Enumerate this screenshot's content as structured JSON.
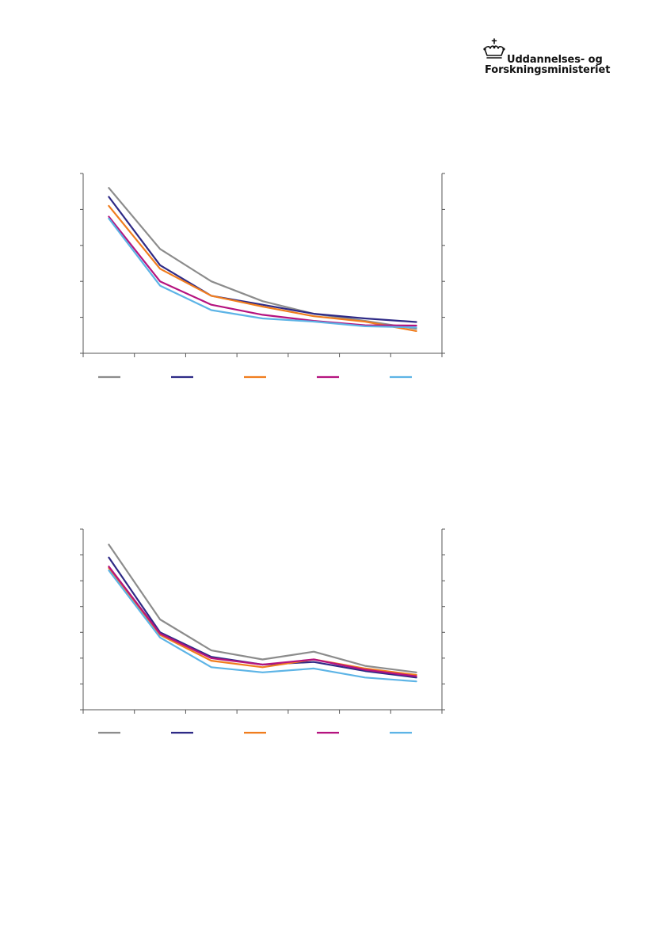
{
  "logo": {
    "line1": "Uddannelses- og",
    "line2": "Forskningsministeriet"
  },
  "colors": {
    "gray": "#8c8c8c",
    "navy": "#2e2a86",
    "orange": "#f07d1e",
    "magenta": "#b5137f",
    "lightblue": "#5db4e6",
    "axis": "#555555"
  },
  "chart_data": [
    {
      "type": "line",
      "grid": false,
      "x": [
        1,
        2,
        3,
        4,
        5,
        6,
        7
      ],
      "ylim": [
        0,
        5
      ],
      "series": [
        {
          "color": "#8c8c8c",
          "values": [
            4.6,
            2.9,
            2.0,
            1.45,
            1.1,
            0.9,
            0.68
          ]
        },
        {
          "color": "#2e2a86",
          "values": [
            4.35,
            2.45,
            1.6,
            1.35,
            1.1,
            0.97,
            0.87
          ]
        },
        {
          "color": "#f07d1e",
          "values": [
            4.1,
            2.35,
            1.6,
            1.3,
            1.03,
            0.88,
            0.62
          ]
        },
        {
          "color": "#b5137f",
          "values": [
            3.8,
            2.0,
            1.35,
            1.07,
            0.9,
            0.78,
            0.77
          ]
        },
        {
          "color": "#5db4e6",
          "values": [
            3.75,
            1.88,
            1.2,
            0.97,
            0.88,
            0.75,
            0.72
          ]
        }
      ]
    },
    {
      "type": "line",
      "grid": false,
      "x": [
        1,
        2,
        3,
        4,
        5,
        6,
        7
      ],
      "ylim": [
        0,
        7
      ],
      "series": [
        {
          "color": "#8c8c8c",
          "values": [
            6.4,
            3.5,
            2.3,
            1.95,
            2.25,
            1.7,
            1.45
          ]
        },
        {
          "color": "#2e2a86",
          "values": [
            5.9,
            3.0,
            2.05,
            1.75,
            1.85,
            1.5,
            1.25
          ]
        },
        {
          "color": "#f07d1e",
          "values": [
            5.5,
            2.9,
            1.9,
            1.65,
            1.95,
            1.6,
            1.35
          ]
        },
        {
          "color": "#b5137f",
          "values": [
            5.55,
            2.95,
            2.0,
            1.75,
            1.95,
            1.55,
            1.3
          ]
        },
        {
          "color": "#5db4e6",
          "values": [
            5.4,
            2.8,
            1.65,
            1.45,
            1.6,
            1.25,
            1.1
          ]
        }
      ]
    }
  ]
}
